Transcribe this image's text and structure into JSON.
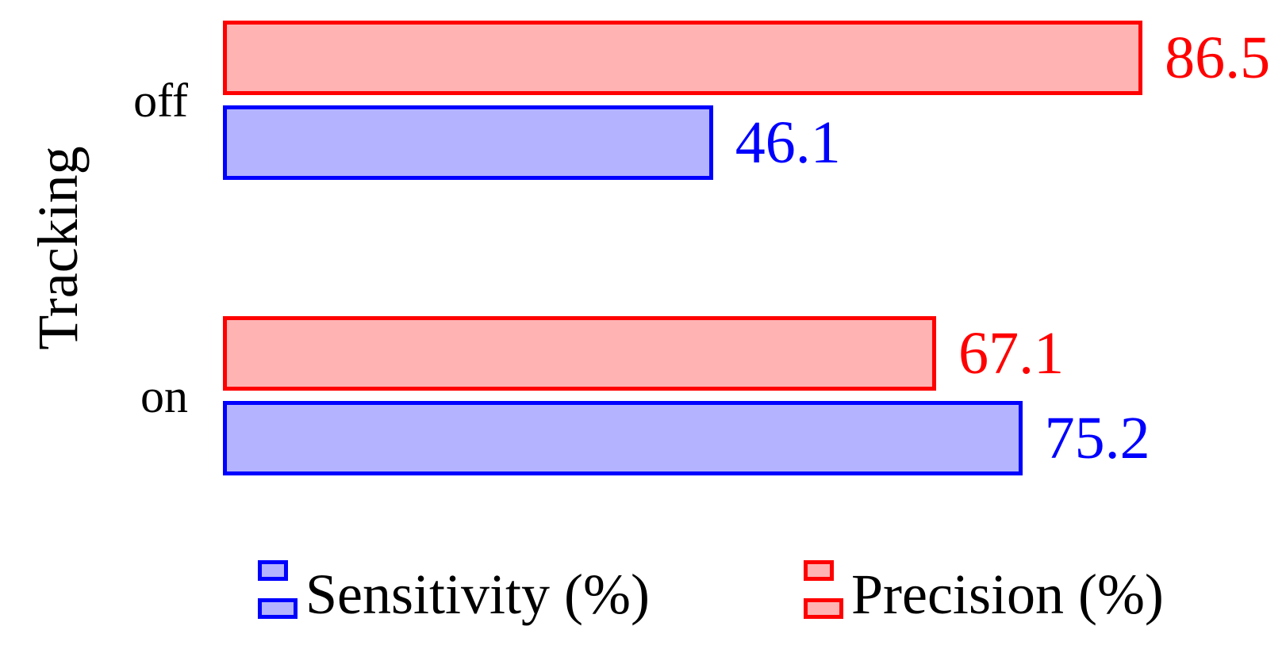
{
  "chart_data": {
    "type": "bar",
    "orientation": "horizontal",
    "title": "",
    "axis_label": "Tracking",
    "categories": [
      "off",
      "on"
    ],
    "series": [
      {
        "name": "Sensitivity (%)",
        "edge_color": "#0000ff",
        "fill_color": "#b3b3ff",
        "values": [
          46.1,
          75.2
        ]
      },
      {
        "name": "Precision (%)",
        "edge_color": "#ff0000",
        "fill_color": "#ffb3b3",
        "values": [
          86.5,
          67.1
        ]
      }
    ],
    "value_labels": {
      "Sensitivity (%)": [
        "46.1",
        "75.2"
      ],
      "Precision (%)": [
        "86.5",
        "67.1"
      ]
    },
    "xlim": [
      0,
      100
    ],
    "grid": false,
    "axis_lines": "none",
    "legend_position": "bottom",
    "background_color": "#ffffff",
    "text_color": "#000000"
  }
}
